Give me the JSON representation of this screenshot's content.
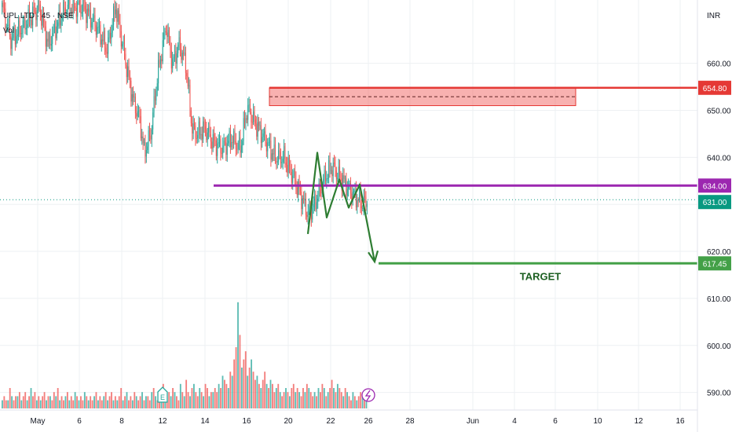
{
  "header": {
    "symbol_line": "UPL LTD · 45 · NSE",
    "volume_label": "Vol",
    "currency": "INR"
  },
  "colors": {
    "up": "#26a69a",
    "down": "#ef5350",
    "resistance": "#e53935",
    "support": "#9c27b0",
    "target": "#43a047",
    "projection": "#2e7d32",
    "current": "#089981",
    "grid": "#eef0f3"
  },
  "event_icons": [
    "earnings-icon",
    "dividend-flash-icon"
  ],
  "chart_data": {
    "type": "candlestick",
    "y_ticks": [
      660,
      650,
      640,
      630,
      620,
      610,
      600,
      590
    ],
    "ylim": [
      586.5,
      669.5
    ],
    "x_ticks": [
      "May",
      "6",
      "8",
      "12",
      "14",
      "16",
      "20",
      "22",
      "26",
      "28",
      "Jun",
      "4",
      "6",
      "10",
      "12",
      "16"
    ],
    "y_axis_unit": "INR",
    "price_labels": [
      {
        "value": 654.8,
        "text": "654.80",
        "kind": "resistance"
      },
      {
        "value": 634.0,
        "text": "634.00",
        "kind": "support"
      },
      {
        "value": 631.0,
        "text": "631.00",
        "kind": "current"
      },
      {
        "value": 617.45,
        "text": "617.45",
        "kind": "target"
      }
    ],
    "annotations": [
      {
        "type": "zone",
        "top": 654.8,
        "bottom": 651.0,
        "mid": 652.9,
        "from_date": "May 18",
        "to_date": "Jun 8",
        "label": ""
      },
      {
        "type": "hline",
        "value": 634.0,
        "from_date": "May 14",
        "label": ""
      },
      {
        "type": "hline",
        "value": 617.45,
        "from_date": "May 27",
        "label": "TARGET"
      },
      {
        "type": "projection_path",
        "points": [
          [
            620,
            623.7
          ],
          [
            632,
            641
          ],
          [
            644,
            627.2
          ],
          [
            660,
            635.3
          ],
          [
            672,
            629.3
          ],
          [
            686,
            634.2
          ],
          [
            705,
            617.8
          ]
        ]
      }
    ],
    "series": [
      {
        "name": "UPL LTD",
        "kind": "candles",
        "anchors": [
          [
            0,
            672
          ],
          [
            8,
            665
          ],
          [
            20,
            668
          ],
          [
            34,
            672
          ],
          [
            42,
            664
          ],
          [
            58,
            672
          ],
          [
            74,
            672
          ],
          [
            86,
            668
          ],
          [
            96,
            663
          ],
          [
            104,
            672
          ],
          [
            114,
            659
          ],
          [
            120,
            652
          ],
          [
            126,
            648
          ],
          [
            130,
            641
          ],
          [
            136,
            645
          ],
          [
            142,
            657
          ],
          [
            150,
            668
          ],
          [
            156,
            660
          ],
          [
            162,
            664
          ],
          [
            168,
            660
          ],
          [
            174,
            646
          ],
          [
            178,
            645
          ],
          [
            186,
            646
          ],
          [
            194,
            643
          ],
          [
            202,
            642
          ],
          [
            210,
            644
          ],
          [
            218,
            642
          ],
          [
            224,
            650
          ],
          [
            226,
            650
          ],
          [
            230,
            648
          ],
          [
            240,
            644
          ],
          [
            250,
            640
          ],
          [
            258,
            640
          ],
          [
            268,
            635
          ],
          [
            280,
            628
          ],
          [
            286,
            630
          ],
          [
            296,
            636
          ],
          [
            302,
            638
          ],
          [
            312,
            635
          ],
          [
            318,
            633
          ],
          [
            326,
            631
          ],
          [
            330,
            630
          ],
          [
            334,
            631
          ]
        ],
        "volumes": [
          2,
          3,
          2,
          2,
          5,
          3,
          2,
          3,
          3,
          4,
          2,
          3,
          4,
          2,
          3,
          5,
          3,
          4,
          2,
          3,
          2,
          3,
          4,
          2,
          3,
          3,
          2,
          4,
          3,
          5,
          2,
          3,
          2,
          3,
          4,
          2,
          3,
          2,
          4,
          3,
          2,
          3,
          2,
          4,
          3,
          2,
          3,
          2,
          3,
          4,
          2,
          3,
          2,
          3,
          4,
          2,
          3,
          4,
          2,
          3,
          2,
          3,
          5,
          2,
          3,
          4,
          2,
          3,
          2,
          4,
          3,
          2,
          3,
          4,
          2,
          3,
          3,
          2,
          4,
          5,
          3,
          2,
          3,
          4,
          6,
          3,
          2,
          4,
          3,
          5,
          4,
          3,
          2,
          6,
          4,
          3,
          7,
          4,
          3,
          5,
          6,
          4,
          3,
          5,
          4,
          3,
          6,
          5,
          3,
          4,
          4,
          5,
          4,
          6,
          5,
          8,
          7,
          6,
          5,
          9,
          8,
          12,
          15,
          26,
          18,
          10,
          12,
          14,
          8,
          10,
          12,
          9,
          7,
          8,
          6,
          5,
          7,
          9,
          6,
          5,
          7,
          6,
          4,
          5,
          6,
          4,
          3,
          4,
          5,
          4,
          3,
          5,
          6,
          4,
          5,
          4,
          3,
          5,
          4,
          6,
          5,
          4,
          3,
          4,
          3,
          5,
          4,
          6,
          5,
          3,
          4,
          5,
          7,
          5,
          4,
          6,
          5,
          4,
          3,
          5,
          4,
          3,
          2,
          4,
          3,
          2,
          3,
          4,
          3,
          2,
          3
        ]
      }
    ],
    "title": "",
    "xlabel": "",
    "ylabel": "",
    "grid": true,
    "legend": "top-left"
  }
}
